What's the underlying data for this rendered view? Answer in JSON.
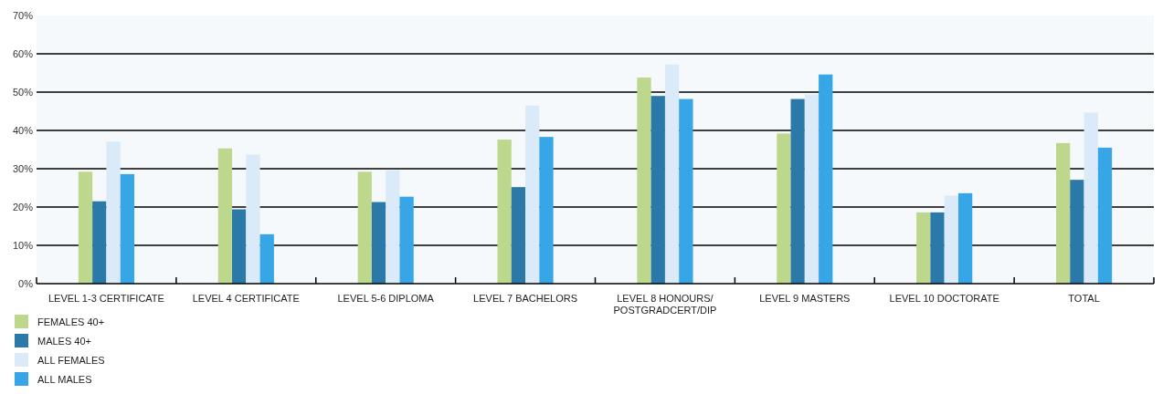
{
  "chart_data": {
    "type": "bar",
    "categories": [
      "LEVEL 1-3 CERTIFICATE",
      "LEVEL 4 CERTIFICATE",
      "LEVEL 5-6 DIPLOMA",
      "LEVEL 7 BACHELORS",
      "LEVEL 8 HONOURS/ POSTGRADCERT/DIP",
      "LEVEL 9 MASTERS",
      "LEVEL 10 DOCTORATE",
      "TOTAL"
    ],
    "series": [
      {
        "name": "FEMALES 40+",
        "color": "#bdd88c",
        "values": [
          29.2,
          35.3,
          29.2,
          37.6,
          53.8,
          39.2,
          18.6,
          36.7
        ]
      },
      {
        "name": "MALES 40+",
        "color": "#2a79a9",
        "values": [
          21.5,
          19.4,
          21.3,
          25.2,
          49.0,
          48.2,
          18.6,
          27.1
        ]
      },
      {
        "name": "ALL FEMALES",
        "color": "#dbeaf8",
        "values": [
          37.1,
          33.7,
          29.6,
          46.5,
          57.2,
          49.4,
          23.0,
          44.7
        ]
      },
      {
        "name": "ALL MALES",
        "color": "#37a6e6",
        "values": [
          28.6,
          12.9,
          22.7,
          38.3,
          48.2,
          54.6,
          23.6,
          35.5
        ]
      }
    ],
    "ylim": [
      0,
      70
    ],
    "yticks": [
      {
        "value": 0,
        "label": "0%"
      },
      {
        "value": 10,
        "label": "10%"
      },
      {
        "value": 20,
        "label": "20%"
      },
      {
        "value": 30,
        "label": "30%"
      },
      {
        "value": 40,
        "label": "40%"
      },
      {
        "value": 50,
        "label": "50%"
      },
      {
        "value": 60,
        "label": "60%"
      },
      {
        "value": 70,
        "label": "70%"
      }
    ],
    "grid": "y",
    "legend": "bottom left"
  }
}
